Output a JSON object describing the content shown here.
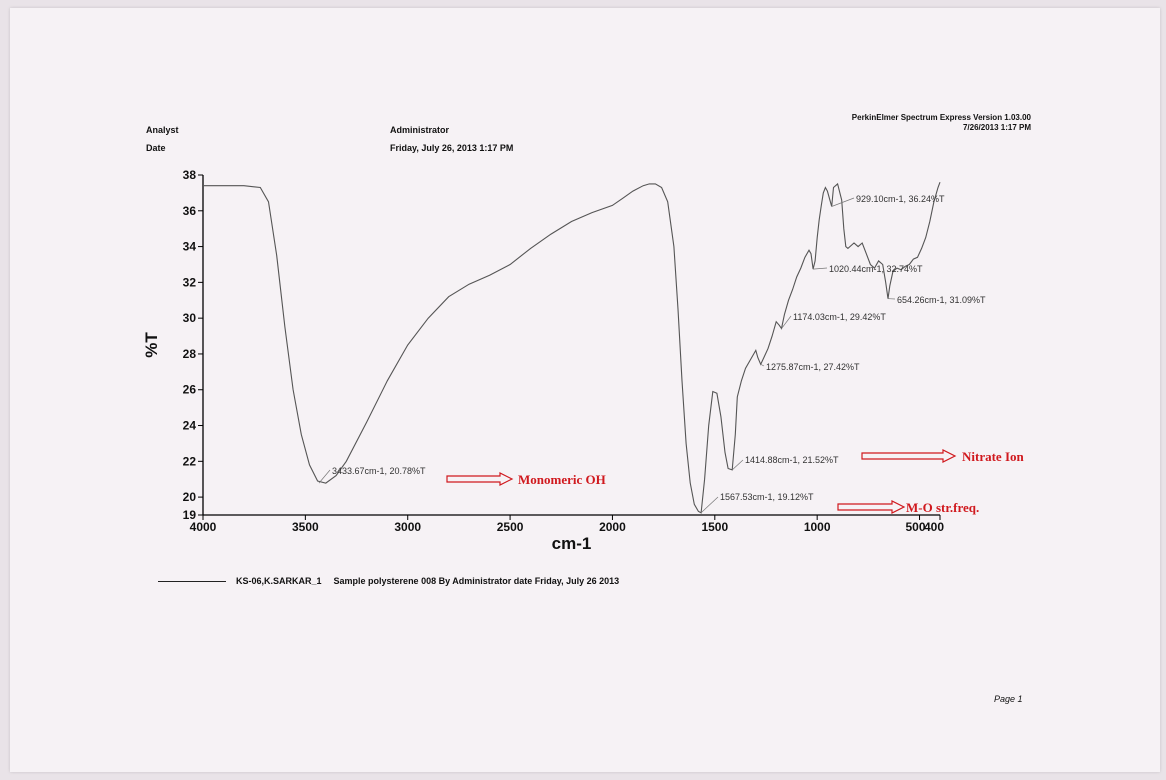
{
  "header": {
    "analyst_label": "Analyst",
    "date_label": "Date",
    "analyst_value": "Administrator",
    "date_value": "Friday, July 26, 2013 1:17 PM",
    "software": "PerkinElmer Spectrum Express Version 1.03.00",
    "software_date": "7/26/2013 1:17 PM"
  },
  "legend": {
    "series_name": "KS-06,K.SARKAR_1",
    "description": "Sample polysterene 008 By Administrator date Friday, July 26 2013"
  },
  "footer": {
    "page": "Page 1"
  },
  "colors": {
    "trace": "#555555",
    "annotation": "#d0191e",
    "axis": "#000000"
  },
  "chart_data": {
    "type": "line",
    "xlabel": "cm-1",
    "ylabel": "%T",
    "xlim": [
      4000,
      400
    ],
    "ylim": [
      19,
      38
    ],
    "x_ticks": [
      4000,
      3500,
      3000,
      2500,
      2000,
      1500,
      1000,
      500,
      400
    ],
    "x_tick_labels": [
      "4000",
      "3500",
      "3000",
      "2500",
      "2000",
      "1500",
      "1000",
      "500",
      "400"
    ],
    "y_ticks": [
      19,
      20,
      22,
      24,
      26,
      28,
      30,
      32,
      34,
      36,
      38
    ],
    "y_tick_labels": [
      "19",
      "20",
      "22",
      "24",
      "26",
      "28",
      "30",
      "32",
      "34",
      "36",
      "38"
    ],
    "series": [
      {
        "name": "KS-06,K.SARKAR_1",
        "x": [
          4000,
          3800,
          3720,
          3680,
          3640,
          3600,
          3560,
          3520,
          3480,
          3440,
          3400,
          3350,
          3300,
          3200,
          3100,
          3000,
          2900,
          2800,
          2700,
          2600,
          2500,
          2400,
          2300,
          2200,
          2100,
          2000,
          1950,
          1900,
          1850,
          1820,
          1790,
          1760,
          1730,
          1700,
          1680,
          1660,
          1640,
          1620,
          1600,
          1580,
          1567,
          1550,
          1530,
          1510,
          1490,
          1470,
          1450,
          1435,
          1415,
          1400,
          1390,
          1370,
          1350,
          1320,
          1300,
          1290,
          1276,
          1260,
          1240,
          1220,
          1200,
          1185,
          1174,
          1160,
          1140,
          1120,
          1100,
          1080,
          1060,
          1040,
          1030,
          1020,
          1010,
          1000,
          990,
          980,
          970,
          960,
          950,
          940,
          929,
          920,
          900,
          880,
          870,
          860,
          850,
          840,
          820,
          800,
          780,
          760,
          740,
          720,
          700,
          680,
          665,
          654,
          645,
          630,
          610,
          590,
          570,
          550,
          530,
          510,
          490,
          470,
          450,
          430,
          410,
          400
        ],
        "y": [
          37.4,
          37.4,
          37.3,
          36.5,
          33.5,
          29.5,
          26.0,
          23.5,
          21.8,
          20.9,
          20.78,
          21.2,
          22.0,
          24.2,
          26.5,
          28.5,
          30.0,
          31.2,
          31.9,
          32.4,
          33.0,
          33.9,
          34.7,
          35.4,
          35.9,
          36.3,
          36.7,
          37.1,
          37.4,
          37.5,
          37.5,
          37.3,
          36.5,
          34.0,
          30.5,
          26.5,
          23.0,
          20.8,
          19.6,
          19.2,
          19.12,
          21.0,
          24.0,
          25.9,
          25.8,
          24.5,
          22.5,
          21.6,
          21.52,
          23.5,
          25.6,
          26.5,
          27.2,
          27.8,
          28.2,
          27.8,
          27.42,
          27.8,
          28.3,
          29.0,
          29.8,
          29.6,
          29.42,
          30.2,
          31.0,
          31.6,
          32.3,
          32.8,
          33.4,
          33.8,
          33.6,
          32.74,
          33.2,
          34.5,
          35.5,
          36.3,
          37.0,
          37.3,
          37.1,
          36.7,
          36.24,
          37.3,
          37.5,
          36.6,
          35.0,
          34.0,
          33.9,
          34.0,
          34.2,
          34.0,
          34.2,
          33.6,
          33.0,
          32.8,
          33.2,
          33.0,
          32.0,
          31.09,
          31.8,
          32.6,
          32.8,
          32.7,
          32.9,
          33.0,
          33.3,
          33.4,
          33.9,
          34.5,
          35.4,
          36.5,
          37.3,
          37.6
        ]
      }
    ],
    "peak_labels": [
      {
        "x": 3433.67,
        "y": 20.78,
        "text": "3433.67cm-1, 20.78%T"
      },
      {
        "x": 1567.53,
        "y": 19.12,
        "text": "1567.53cm-1, 19.12%T"
      },
      {
        "x": 1414.88,
        "y": 21.52,
        "text": "1414.88cm-1, 21.52%T"
      },
      {
        "x": 1275.87,
        "y": 27.42,
        "text": "1275.87cm-1, 27.42%T"
      },
      {
        "x": 1174.03,
        "y": 29.42,
        "text": "1174.03cm-1, 29.42%T"
      },
      {
        "x": 1020.44,
        "y": 32.74,
        "text": "1020.44cm-1, 32.74%T"
      },
      {
        "x": 929.1,
        "y": 36.24,
        "text": "929.10cm-1, 36.24%T"
      },
      {
        "x": 654.26,
        "y": 31.09,
        "text": "654.26cm-1, 31.09%T"
      }
    ],
    "annotations": [
      {
        "text": "Monomeric OH"
      },
      {
        "text": "Nitrate Ion"
      },
      {
        "text": "M-O str.freq."
      }
    ]
  }
}
